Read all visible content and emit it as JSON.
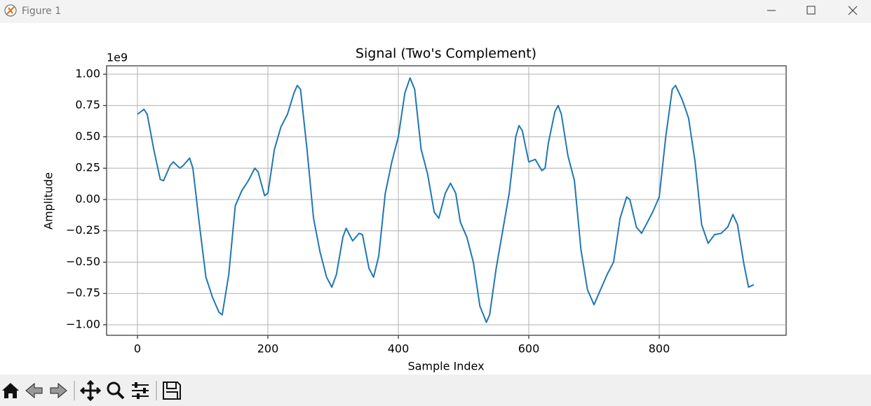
{
  "window": {
    "title": "Figure 1"
  },
  "chart_data": {
    "type": "line",
    "title": "Signal (Two's Complement)",
    "x_label": "Sample Index",
    "y_label": "Amplitude",
    "y_offset_text": "1e9",
    "x": [
      0,
      10,
      15,
      25,
      35,
      40,
      50,
      55,
      65,
      70,
      80,
      85,
      95,
      105,
      115,
      125,
      130,
      140,
      150,
      160,
      170,
      180,
      185,
      195,
      200,
      210,
      220,
      230,
      240,
      245,
      250,
      260,
      270,
      280,
      290,
      298,
      305,
      315,
      320,
      330,
      340,
      345,
      355,
      362,
      370,
      380,
      390,
      400,
      410,
      418,
      425,
      435,
      445,
      455,
      462,
      472,
      480,
      488,
      495,
      505,
      515,
      525,
      535,
      540,
      550,
      560,
      570,
      580,
      585,
      590,
      600,
      610,
      620,
      625,
      630,
      640,
      645,
      650,
      660,
      670,
      680,
      690,
      700,
      710,
      720,
      730,
      740,
      750,
      755,
      765,
      773,
      780,
      790,
      800,
      810,
      820,
      825,
      835,
      845,
      855,
      865,
      875,
      885,
      895,
      905,
      913,
      920,
      930,
      937,
      945
    ],
    "series": [
      {
        "name": "Signal",
        "color": "#1f77b4",
        "values": [
          0.68,
          0.72,
          0.68,
          0.4,
          0.16,
          0.15,
          0.27,
          0.3,
          0.25,
          0.27,
          0.33,
          0.25,
          -0.2,
          -0.62,
          -0.78,
          -0.9,
          -0.92,
          -0.6,
          -0.05,
          0.07,
          0.15,
          0.25,
          0.22,
          0.03,
          0.05,
          0.4,
          0.58,
          0.68,
          0.85,
          0.91,
          0.88,
          0.4,
          -0.15,
          -0.42,
          -0.62,
          -0.7,
          -0.6,
          -0.3,
          -0.23,
          -0.33,
          -0.27,
          -0.28,
          -0.55,
          -0.62,
          -0.45,
          0.05,
          0.3,
          0.5,
          0.85,
          0.97,
          0.88,
          0.4,
          0.2,
          -0.1,
          -0.15,
          0.05,
          0.13,
          0.05,
          -0.18,
          -0.3,
          -0.5,
          -0.85,
          -0.98,
          -0.92,
          -0.55,
          -0.25,
          0.05,
          0.5,
          0.59,
          0.55,
          0.3,
          0.32,
          0.23,
          0.25,
          0.45,
          0.7,
          0.75,
          0.68,
          0.35,
          0.15,
          -0.4,
          -0.72,
          -0.84,
          -0.72,
          -0.6,
          -0.5,
          -0.15,
          0.02,
          0.0,
          -0.22,
          -0.27,
          -0.2,
          -0.1,
          0.02,
          0.5,
          0.88,
          0.91,
          0.8,
          0.65,
          0.3,
          -0.2,
          -0.35,
          -0.28,
          -0.27,
          -0.22,
          -0.12,
          -0.2,
          -0.52,
          -0.7,
          -0.68
        ]
      }
    ],
    "xlim": [
      -47.3,
      994.6
    ],
    "ylim": [
      -1.084,
      1.067
    ],
    "xticks": [
      0,
      200,
      400,
      600,
      800
    ],
    "yticks": [
      {
        "value": -1,
        "label": "−1.00"
      },
      {
        "value": -0.75,
        "label": "−0.75"
      },
      {
        "value": -0.5,
        "label": "−0.50"
      },
      {
        "value": -0.25,
        "label": "−0.25"
      },
      {
        "value": 0,
        "label": "0.00"
      },
      {
        "value": 0.25,
        "label": "0.25"
      },
      {
        "value": 0.5,
        "label": "0.50"
      },
      {
        "value": 0.75,
        "label": "0.75"
      },
      {
        "value": 1,
        "label": "1.00"
      }
    ],
    "grid": true
  }
}
